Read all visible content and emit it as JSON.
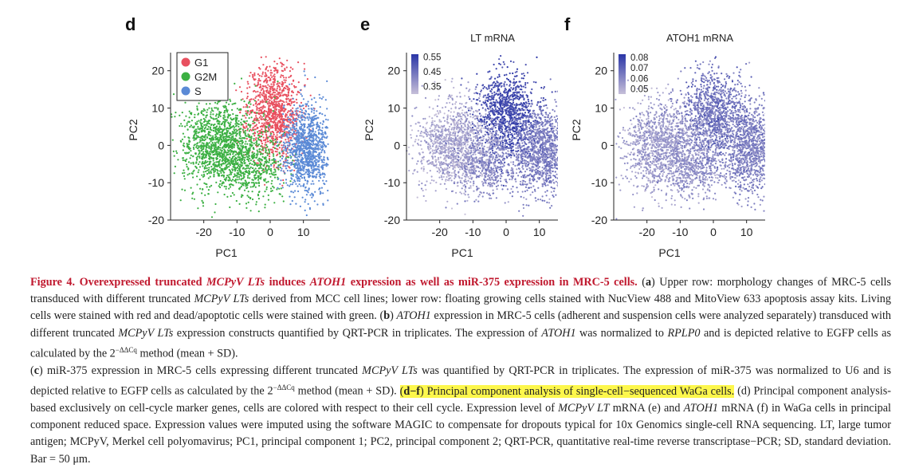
{
  "panels": {
    "d": {
      "letter": "d"
    },
    "e": {
      "letter": "e"
    },
    "f": {
      "letter": "f"
    }
  },
  "chart_data": [
    {
      "type": "scatter",
      "title": "",
      "xlabel": "PC1",
      "ylabel": "PC2",
      "xlim": [
        -30,
        18
      ],
      "ylim": [
        -20,
        24
      ],
      "xticks": [
        "-20",
        "-10",
        "0",
        "10"
      ],
      "yticks": [
        "20",
        "10",
        "0",
        "-10",
        "-20"
      ],
      "legend": {
        "placement": "top-left",
        "entries": [
          {
            "name": "G1",
            "color": "#e8505f"
          },
          {
            "name": "G2M",
            "color": "#3cb043"
          },
          {
            "name": "S",
            "color": "#5b8ad6"
          }
        ]
      },
      "series": [
        {
          "name": "G1",
          "color": "#e8505f",
          "clusters": [
            {
              "cx": 1,
              "cy": 9,
              "sx": 4,
              "sy": 6.5,
              "n": 1100
            }
          ]
        },
        {
          "name": "G2M",
          "color": "#3cb043",
          "clusters": [
            {
              "cx": -15,
              "cy": 0,
              "sx": 6,
              "sy": 6,
              "n": 1300
            },
            {
              "cx": -5,
              "cy": -6,
              "sx": 5,
              "sy": 4,
              "n": 450
            }
          ]
        },
        {
          "name": "S",
          "color": "#5b8ad6",
          "clusters": [
            {
              "cx": 11,
              "cy": -1,
              "sx": 3.5,
              "sy": 6,
              "n": 1100
            }
          ]
        }
      ]
    },
    {
      "type": "scatter",
      "title": "LT mRNA",
      "xlabel": "PC1",
      "ylabel": "PC2",
      "xlim": [
        -30,
        18
      ],
      "ylim": [
        -20,
        24
      ],
      "xticks": [
        "-20",
        "-10",
        "0",
        "10"
      ],
      "yticks": [
        "20",
        "10",
        "0",
        "-10",
        "-20"
      ],
      "colorbar": {
        "labels": [
          "0.55",
          "0.45",
          "0.35"
        ],
        "range": [
          0.3,
          0.57
        ],
        "low_color": "#c6bfd8",
        "high_color": "#2a35a6"
      },
      "clusters": [
        {
          "cx": 0,
          "cy": 8,
          "sx": 4.5,
          "sy": 6,
          "n": 1100,
          "value": 0.53
        },
        {
          "cx": 11,
          "cy": -1,
          "sx": 4,
          "sy": 6,
          "n": 1100,
          "value": 0.43
        },
        {
          "cx": -15,
          "cy": 0,
          "sx": 6,
          "sy": 6,
          "n": 1300,
          "value": 0.35
        },
        {
          "cx": -5,
          "cy": -6,
          "sx": 5,
          "sy": 4,
          "n": 450,
          "value": 0.41
        }
      ]
    },
    {
      "type": "scatter",
      "title": "ATOH1 mRNA",
      "xlabel": "PC1",
      "ylabel": "PC2",
      "xlim": [
        -30,
        18
      ],
      "ylim": [
        -20,
        24
      ],
      "xticks": [
        "-20",
        "-10",
        "0",
        "10"
      ],
      "yticks": [
        "20",
        "10",
        "0",
        "-10",
        "-20"
      ],
      "colorbar": {
        "labels": [
          "0.08",
          "0.07",
          "0.06",
          "0.05"
        ],
        "range": [
          0.045,
          0.083
        ],
        "low_color": "#c6bfd8",
        "high_color": "#2a35a6"
      },
      "clusters": [
        {
          "cx": 0,
          "cy": 8,
          "sx": 4.5,
          "sy": 6,
          "n": 1100,
          "value": 0.066
        },
        {
          "cx": 11,
          "cy": -1,
          "sx": 4,
          "sy": 6,
          "n": 1100,
          "value": 0.062
        },
        {
          "cx": -15,
          "cy": 0,
          "sx": 6,
          "sy": 6,
          "n": 1300,
          "value": 0.055
        },
        {
          "cx": -5,
          "cy": -6,
          "sx": 5,
          "sy": 4,
          "n": 450,
          "value": 0.058
        }
      ]
    }
  ],
  "caption": {
    "lead_prefix": "Figure 4.  Overexpressed truncated ",
    "lead_i1": "MCPyV LTs",
    "lead_mid": " induces ",
    "lead_i2": "ATOH1",
    "lead_suffix": " expression as well as miR-375 expression in MRC-5 cells.",
    "a_label": "a",
    "a_text1": " Upper row: morphology changes of MRC-5 cells transduced with different truncated ",
    "a_i1": "MCPyV LTs",
    "a_text2": " derived from MCC cell lines; lower row: floating growing cells stained with NucView 488 and MitoView 633 apoptosis assay kits. Living cells were stained with red and dead/apoptotic cells were stained with green. (",
    "b_label": "b",
    "b_text0": ") ",
    "b_i1": "ATOH1",
    "b_text1": " expression in MRC-5 cells (adherent and suspension cells were analyzed separately) transduced with different truncated ",
    "b_i2": "MCPyV LTs",
    "b_text2": " expression constructs quantified by QRT-PCR in triplicates. The expression of ",
    "b_i3": "ATOH1",
    "b_text3": " was normalized to ",
    "b_i4": "RPLP0",
    "b_text4": " and is depicted relative to EGFP cells as calculated by the 2",
    "b_sup": "−ΔΔCq",
    "b_text5": " method (mean + SD).",
    "c_open": "(",
    "c_label": "c",
    "c_text1": ") miR-375 expression in MRC-5 cells expressing different truncated ",
    "c_i1": "MCPyV LTs",
    "c_text2": " was quantified by QRT-PCR in triplicates. The expression of miR-375 was normalized to U6 and is depicted relative to EGFP cells as calculated by the 2",
    "c_sup": "−ΔΔCq",
    "c_text3": " method (mean + SD). ",
    "df_open": "(",
    "df_label": "d−f",
    "df_text": ") Principal component analysis of single-cell−sequenced WaGa cells.",
    "d_text": " (d) Principal component analysis-based exclusively on cell-cycle marker genes, cells are colored with respect to their cell cycle. Expression level of ",
    "d_i1": "MCPyV LT",
    "d_text2": " mRNA (e) and ",
    "d_i2": "ATOH1",
    "d_text3": " mRNA (f) in WaGa cells in principal component reduced space. Expression values were imputed using the software MAGIC to compensate for dropouts typical for 10x Genomics single-cell RNA sequencing. LT, large tumor antigen; MCPyV, Merkel cell polyomavirus; PC1, principal component 1; PC2, principal component 2; QRT-PCR, quantitative real-time reverse transcriptase−PCR; SD, standard deviation. Bar = 50 μm."
  }
}
